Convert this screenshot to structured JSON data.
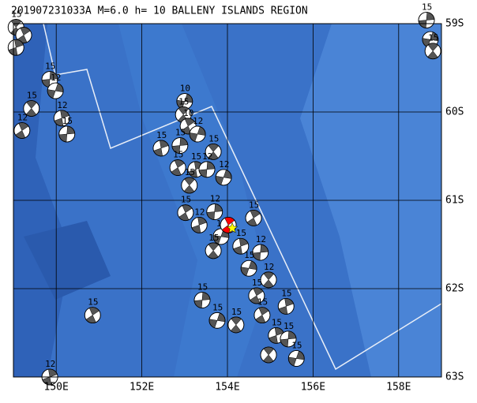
{
  "title": "201907231033A M=6.0 h= 10 BALLENY ISLANDS REGION",
  "map": {
    "lon_range": [
      149,
      159
    ],
    "lat_range": [
      59,
      63
    ],
    "lon_ticks": [
      {
        "value": 150,
        "label": "150E"
      },
      {
        "value": 152,
        "label": "152E"
      },
      {
        "value": 154,
        "label": "154E"
      },
      {
        "value": 156,
        "label": "156E"
      },
      {
        "value": 158,
        "label": "158E"
      }
    ],
    "lat_ticks": [
      {
        "value": 59,
        "label": "59S"
      },
      {
        "value": 60,
        "label": "60S"
      },
      {
        "value": 61,
        "label": "61S"
      },
      {
        "value": 62,
        "label": "62S"
      },
      {
        "value": 63,
        "label": "63S"
      }
    ]
  },
  "mainshock": {
    "lon": 154.02,
    "lat": 61.28,
    "color": "#ff0000",
    "epicenter_color": "#ffff00"
  },
  "events": [
    {
      "lon": 149.06,
      "lat": 59.04,
      "depth": 15
    },
    {
      "lon": 149.24,
      "lat": 59.13
    },
    {
      "lon": 149.06,
      "lat": 59.27
    },
    {
      "lon": 149.85,
      "lat": 59.63,
      "depth": 15
    },
    {
      "lon": 149.98,
      "lat": 59.76,
      "depth": 12
    },
    {
      "lon": 149.42,
      "lat": 59.96,
      "depth": 15
    },
    {
      "lon": 149.2,
      "lat": 60.21,
      "depth": 12
    },
    {
      "lon": 150.13,
      "lat": 60.07,
      "depth": 12
    },
    {
      "lon": 150.25,
      "lat": 60.25,
      "depth": 15
    },
    {
      "lon": 153.0,
      "lat": 59.88,
      "depth": 10
    },
    {
      "lon": 152.97,
      "lat": 60.03,
      "depth": 15
    },
    {
      "lon": 153.08,
      "lat": 60.16,
      "depth": 10
    },
    {
      "lon": 152.45,
      "lat": 60.41,
      "depth": 15
    },
    {
      "lon": 152.89,
      "lat": 60.38,
      "depth": 15
    },
    {
      "lon": 153.3,
      "lat": 60.25,
      "depth": 12
    },
    {
      "lon": 153.67,
      "lat": 60.45,
      "depth": 15
    },
    {
      "lon": 152.84,
      "lat": 60.63,
      "depth": 15
    },
    {
      "lon": 153.26,
      "lat": 60.65,
      "depth": 15
    },
    {
      "lon": 153.52,
      "lat": 60.65,
      "depth": 12
    },
    {
      "lon": 153.91,
      "lat": 60.74,
      "depth": 12
    },
    {
      "lon": 153.11,
      "lat": 60.83,
      "depth": 15
    },
    {
      "lon": 153.02,
      "lat": 61.14,
      "depth": 15
    },
    {
      "lon": 153.34,
      "lat": 61.28,
      "depth": 12
    },
    {
      "lon": 153.7,
      "lat": 61.13,
      "depth": 12
    },
    {
      "lon": 153.85,
      "lat": 61.41,
      "depth": 15
    },
    {
      "lon": 153.67,
      "lat": 61.57,
      "depth": 15
    },
    {
      "lon": 154.61,
      "lat": 61.2,
      "depth": 15
    },
    {
      "lon": 154.31,
      "lat": 61.52,
      "depth": 15
    },
    {
      "lon": 154.77,
      "lat": 61.59,
      "depth": 12
    },
    {
      "lon": 154.5,
      "lat": 61.77,
      "depth": 15
    },
    {
      "lon": 154.96,
      "lat": 61.9,
      "depth": 12
    },
    {
      "lon": 154.68,
      "lat": 62.08,
      "depth": 15
    },
    {
      "lon": 155.37,
      "lat": 62.2,
      "depth": 15
    },
    {
      "lon": 153.41,
      "lat": 62.13,
      "depth": 15
    },
    {
      "lon": 153.76,
      "lat": 62.36,
      "depth": 15
    },
    {
      "lon": 154.2,
      "lat": 62.41,
      "depth": 15
    },
    {
      "lon": 154.81,
      "lat": 62.3,
      "depth": 15
    },
    {
      "lon": 155.14,
      "lat": 62.53,
      "depth": 15
    },
    {
      "lon": 155.42,
      "lat": 62.57,
      "depth": 15
    },
    {
      "lon": 155.61,
      "lat": 62.79,
      "depth": 15
    },
    {
      "lon": 154.96,
      "lat": 62.75
    },
    {
      "lon": 150.85,
      "lat": 62.3,
      "depth": 15
    },
    {
      "lon": 149.85,
      "lat": 63.0,
      "depth": 12
    },
    {
      "lon": 158.65,
      "lat": 58.96,
      "depth": 15
    },
    {
      "lon": 158.74,
      "lat": 59.18
    },
    {
      "lon": 158.8,
      "lat": 59.31,
      "depth": 15
    }
  ]
}
